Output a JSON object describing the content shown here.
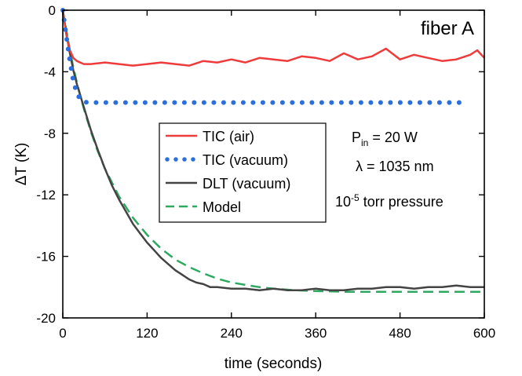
{
  "chart_data": {
    "type": "line",
    "title": "",
    "xlabel": "time (seconds)",
    "ylabel": "ΔT (K)",
    "xlim": [
      0,
      600
    ],
    "ylim": [
      -20,
      0
    ],
    "xticks": [
      0,
      120,
      240,
      360,
      480,
      600
    ],
    "yticks": [
      0,
      -4,
      -8,
      -12,
      -16,
      -20
    ],
    "xtick_labels": [
      "0",
      "120",
      "240",
      "360",
      "480",
      "600"
    ],
    "ytick_labels": [
      "0",
      "-4",
      "-8",
      "-12",
      "-16",
      "-20"
    ],
    "grid": false,
    "legend_position": "center",
    "annotations": {
      "panel_label": "fiber A",
      "power": {
        "prefix": "P",
        "sub": "in",
        "rest": " = 20 W"
      },
      "wavelength": "λ = 1035 nm",
      "pressure": {
        "base": "10",
        "sup": "-5",
        "rest": " torr pressure"
      }
    },
    "series": [
      {
        "name": "TIC (air)",
        "color": "#ee3b3b",
        "style": "solid",
        "x": [
          0,
          5,
          10,
          15,
          20,
          30,
          40,
          60,
          80,
          100,
          120,
          140,
          160,
          180,
          200,
          220,
          240,
          260,
          280,
          300,
          320,
          340,
          360,
          380,
          400,
          420,
          440,
          460,
          480,
          500,
          520,
          540,
          560,
          580,
          590,
          600
        ],
        "y": [
          0,
          -1.6,
          -2.6,
          -3.1,
          -3.3,
          -3.5,
          -3.5,
          -3.4,
          -3.5,
          -3.6,
          -3.5,
          -3.4,
          -3.5,
          -3.6,
          -3.3,
          -3.4,
          -3.2,
          -3.4,
          -3.1,
          -3.2,
          -3.3,
          -3.0,
          -3.1,
          -3.3,
          -2.8,
          -3.2,
          -3.0,
          -2.5,
          -3.2,
          -2.9,
          -3.1,
          -3.3,
          -3.2,
          -2.9,
          -2.6,
          -3.1
        ]
      },
      {
        "name": "TIC (vacuum)",
        "color": "#2a6fdb",
        "style": "dotted",
        "x": [
          0,
          5,
          10,
          15,
          20,
          25,
          30,
          35,
          40,
          60,
          80,
          100,
          120,
          140,
          160,
          180,
          200,
          220,
          240,
          260,
          280,
          300,
          320,
          340,
          360,
          380,
          400,
          420,
          440,
          460,
          480,
          500,
          520,
          540,
          560,
          570
        ],
        "y": [
          0,
          -1.7,
          -3.3,
          -4.6,
          -5.4,
          -5.8,
          -5.95,
          -6.0,
          -6.0,
          -6.0,
          -6.0,
          -6.0,
          -6.0,
          -6.0,
          -6.0,
          -6.0,
          -6.0,
          -6.0,
          -6.0,
          -6.0,
          -6.0,
          -6.0,
          -6.0,
          -6.0,
          -6.0,
          -6.0,
          -6.0,
          -6.0,
          -6.0,
          -6.0,
          -6.0,
          -6.0,
          -6.0,
          -6.0,
          -6.0,
          -6.0
        ]
      },
      {
        "name": "DLT (vacuum)",
        "color": "#444444",
        "style": "solid",
        "x": [
          0,
          5,
          10,
          15,
          20,
          30,
          40,
          50,
          60,
          70,
          80,
          90,
          100,
          110,
          120,
          130,
          140,
          150,
          160,
          170,
          180,
          190,
          200,
          210,
          220,
          240,
          260,
          280,
          300,
          320,
          340,
          360,
          380,
          400,
          420,
          440,
          460,
          480,
          500,
          520,
          540,
          560,
          580,
          600
        ],
        "y": [
          0,
          -1.5,
          -2.8,
          -3.9,
          -4.8,
          -6.3,
          -7.8,
          -9.1,
          -10.3,
          -11.4,
          -12.3,
          -13.1,
          -13.9,
          -14.5,
          -15.1,
          -15.6,
          -16.1,
          -16.5,
          -16.9,
          -17.2,
          -17.5,
          -17.7,
          -17.8,
          -18.0,
          -18.0,
          -18.1,
          -18.1,
          -18.2,
          -18.1,
          -18.2,
          -18.2,
          -18.1,
          -18.2,
          -18.2,
          -18.1,
          -18.1,
          -18.0,
          -18.0,
          -18.1,
          -18.0,
          -18.0,
          -17.9,
          -18.0,
          -18.0
        ]
      },
      {
        "name": "Model",
        "color": "#2daa5f",
        "style": "dashed",
        "x": [
          0,
          5,
          10,
          15,
          20,
          30,
          40,
          50,
          60,
          80,
          100,
          120,
          140,
          160,
          180,
          200,
          220,
          240,
          260,
          280,
          300,
          330,
          360,
          400,
          450,
          500,
          550,
          600
        ],
        "y": [
          0,
          -1.3,
          -2.6,
          -3.7,
          -4.7,
          -6.4,
          -7.9,
          -9.2,
          -10.3,
          -12.1,
          -13.5,
          -14.6,
          -15.5,
          -16.2,
          -16.7,
          -17.1,
          -17.45,
          -17.7,
          -17.85,
          -18.0,
          -18.1,
          -18.2,
          -18.25,
          -18.3,
          -18.3,
          -18.3,
          -18.3,
          -18.3
        ]
      }
    ]
  }
}
